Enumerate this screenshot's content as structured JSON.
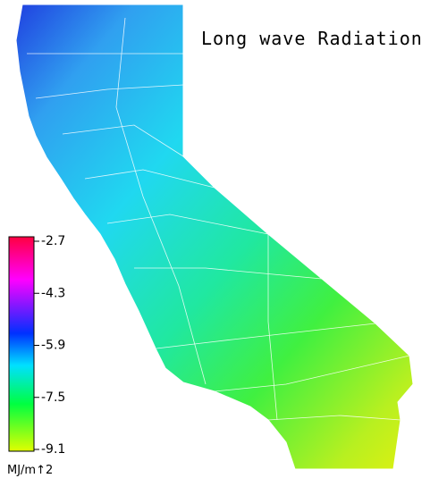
{
  "title": "Long wave Radiation",
  "legend": {
    "ticks": [
      -2.7,
      -4.3,
      -5.9,
      -7.5,
      -9.1
    ],
    "unit": "MJ/m↑2"
  }
}
